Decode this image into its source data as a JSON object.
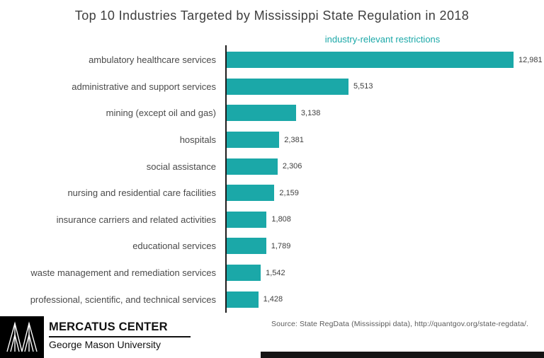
{
  "title": "Top 10 Industries Targeted by Mississippi State Regulation in 2018",
  "chart_data": {
    "type": "bar",
    "orientation": "horizontal",
    "title": "Top 10 Industries Targeted by Mississippi State Regulation in 2018",
    "axis_label": "industry-relevant restrictions",
    "categories": [
      "ambulatory healthcare services",
      "administrative and support services",
      "mining (except oil and gas)",
      "hospitals",
      "social assistance",
      "nursing and residential care facilities",
      "insurance carriers and related activities",
      "educational services",
      "waste management and remediation services",
      "professional, scientific, and technical services"
    ],
    "values": [
      12981,
      5513,
      3138,
      2381,
      2306,
      2159,
      1808,
      1789,
      1542,
      1428
    ],
    "value_labels": [
      "12,981",
      "5,513",
      "3,138",
      "2,381",
      "2,306",
      "2,159",
      "1,808",
      "1,789",
      "1,542",
      "1,428"
    ],
    "xlim": [
      0,
      12981
    ],
    "grid": false,
    "legend": "none",
    "bar_color": "#1BA8A8"
  },
  "source": "Source: State RegData (Mississippi data), http://quantgov.org/state-regdata/.",
  "footer": {
    "org": "MERCATUS CENTER",
    "university": "George Mason University",
    "logo": "mercatus-m-logo"
  },
  "colors": {
    "accent": "#1BA8A8",
    "title_text": "#3e3e3e",
    "label_text": "#4a4a4a",
    "axis_line": "#1c1c1c",
    "footer_black": "#000000"
  }
}
